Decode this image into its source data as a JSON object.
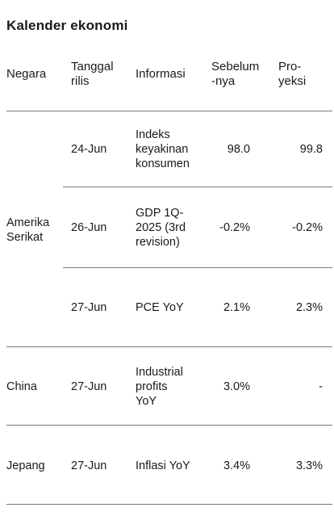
{
  "title": "Kalender ekonomi",
  "headers": {
    "country": "Negara",
    "date_line1": "Tanggal",
    "date_line2": "rilis",
    "info": "Informasi",
    "prev_line1": "Sebelum",
    "prev_line2": "-nya",
    "proj_line1": "Pro-",
    "proj_line2": "yeksi"
  },
  "groups": [
    {
      "country_line1": "Amerika",
      "country_line2": "Serikat",
      "rows": [
        {
          "date": "24-Jun",
          "info_lines": [
            "Indeks",
            "keyakinan",
            "konsumen"
          ],
          "prev": "98.0",
          "proj": "99.8"
        },
        {
          "date": "26-Jun",
          "info_lines": [
            "GDP 1Q-",
            "2025 (3rd",
            "revision)"
          ],
          "prev": "-0.2%",
          "proj": "-0.2%"
        },
        {
          "date": "27-Jun",
          "info_lines": [
            "PCE YoY"
          ],
          "prev": "2.1%",
          "proj": "2.3%"
        }
      ]
    },
    {
      "country_line1": "China",
      "rows": [
        {
          "date": "27-Jun",
          "info_lines": [
            "Industrial",
            "profits",
            "YoY"
          ],
          "prev": "3.0%",
          "proj": "-"
        }
      ]
    },
    {
      "country_line1": "Jepang",
      "rows": [
        {
          "date": "27-Jun",
          "info_lines": [
            "Inflasi YoY"
          ],
          "prev": "3.4%",
          "proj": "3.3%"
        }
      ]
    }
  ]
}
